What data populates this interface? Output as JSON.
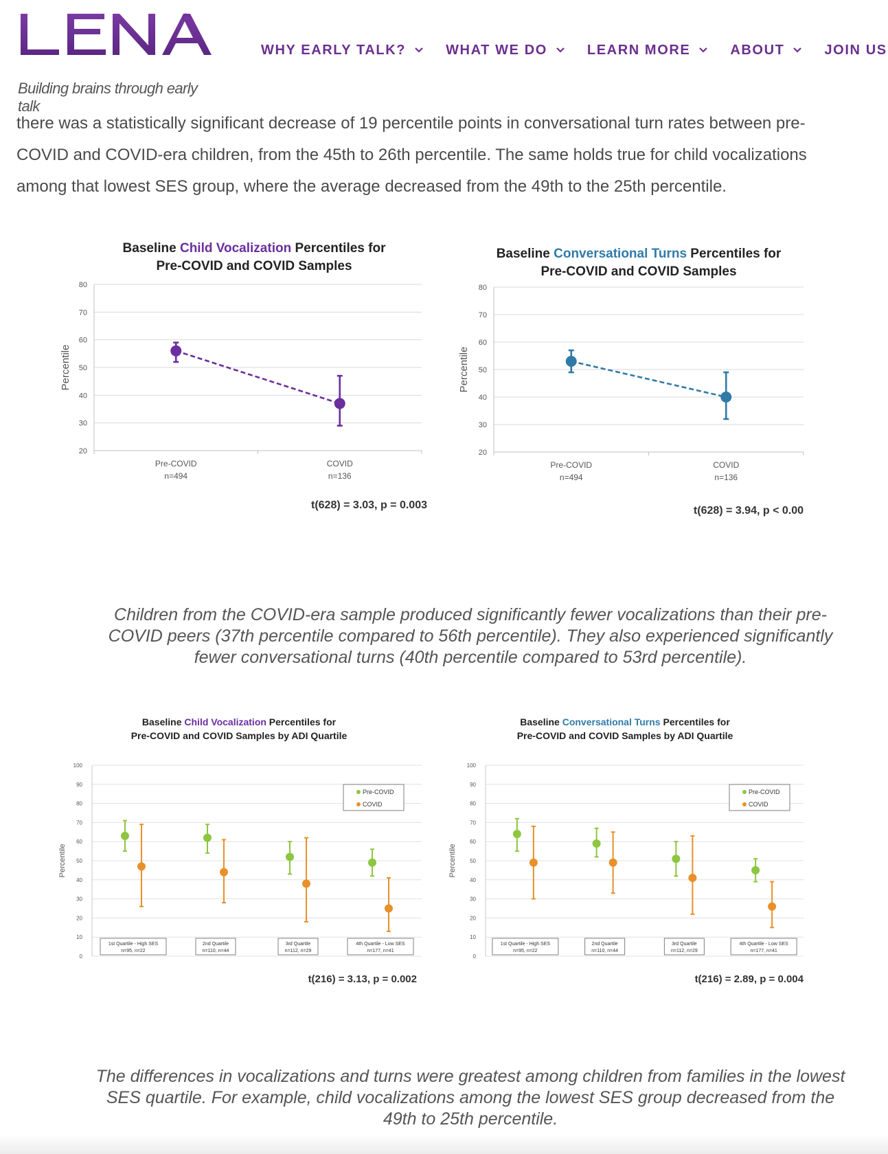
{
  "logo": {
    "wordmark": "LENA",
    "registered": "®",
    "tagline": "Building brains through early talk"
  },
  "nav": {
    "items": [
      {
        "label": "WHY EARLY TALK?",
        "icon": "chevron-down-icon"
      },
      {
        "label": "WHAT WE DO",
        "icon": "chevron-down-icon"
      },
      {
        "label": "LEARN MORE",
        "icon": "chevron-down-icon"
      },
      {
        "label": "ABOUT",
        "icon": "chevron-down-icon"
      },
      {
        "label": "JOIN US",
        "icon": "chevron-down-icon"
      }
    ]
  },
  "colors": {
    "brand": "#6b2f8f",
    "cv": "#6a2e9e",
    "ct": "#2f7aa8",
    "pre": "#8dc63f",
    "covid": "#e8902a"
  },
  "article": {
    "intro_lines": [
      "there was a statistically significant decrease of 19 percentile points in conversational turn rates between pre-",
      "COVID and COVID-era children, from the 45th to 26th percentile. The same holds true for child vocalizations",
      "among that lowest SES group, where the average decreased from the 49th to the 25th percentile."
    ],
    "caption1": "Children from the COVID-era sample produced significantly fewer vocalizations than their pre-COVID peers (37th percentile compared to 56th percentile). They also experienced significantly fewer conversational turns (40th percentile compared to 53rd percentile).",
    "caption2": "The differences in vocalizations and turns were greatest among children from families in the lowest SES quartile. For example, child vocalizations among the lowest SES group decreased from the 49th to 25th percentile."
  },
  "chart_data": [
    {
      "type": "line",
      "title_parts": [
        "Baseline ",
        "Child Vocalization",
        " Percentiles for"
      ],
      "title_line2": "Pre-COVID and COVID Samples",
      "ylabel": "Percentile",
      "ylim": [
        20,
        80
      ],
      "yticks": [
        20,
        30,
        40,
        50,
        60,
        70,
        80
      ],
      "categories": [
        "Pre-COVID",
        "COVID"
      ],
      "category_n": [
        "n=494",
        "n=136"
      ],
      "values": [
        56,
        37
      ],
      "err_low": [
        52,
        29
      ],
      "err_high": [
        59,
        47
      ],
      "stat": "t(628) = 3.03, p = 0.003",
      "color_key": "cv"
    },
    {
      "type": "line",
      "title_parts": [
        "Baseline ",
        "Conversational Turns",
        " Percentiles for"
      ],
      "title_line2": "Pre-COVID and COVID Samples",
      "ylabel": "Percentile",
      "ylim": [
        20,
        80
      ],
      "yticks": [
        20,
        30,
        40,
        50,
        60,
        70,
        80
      ],
      "categories": [
        "Pre-COVID",
        "COVID"
      ],
      "category_n": [
        "n=494",
        "n=136"
      ],
      "values": [
        53,
        40
      ],
      "err_low": [
        49,
        32
      ],
      "err_high": [
        57,
        49
      ],
      "stat": "t(628) = 3.94, p < 0.00",
      "color_key": "ct"
    },
    {
      "type": "scatter",
      "title_parts": [
        "Baseline ",
        "Child Vocalization",
        " Percentiles for"
      ],
      "title_line2": "Pre-COVID and COVID Samples by ADI Quartile",
      "ylabel": "Percentile",
      "ylim": [
        0,
        100
      ],
      "yticks": [
        0,
        10,
        20,
        30,
        40,
        50,
        60,
        70,
        80,
        90,
        100
      ],
      "categories": [
        "1st Quartile - High SES",
        "2nd Quartile",
        "3rd Quartile",
        "4th Quartile - Low SES"
      ],
      "category_n": [
        "n=95, n=22",
        "n=110, n=44",
        "n=112, n=29",
        "n=177, n=41"
      ],
      "legend": [
        "Pre-COVID",
        "COVID"
      ],
      "series": [
        {
          "name": "Pre-COVID",
          "values": [
            63,
            62,
            52,
            49
          ],
          "err_low": [
            55,
            54,
            43,
            42
          ],
          "err_high": [
            71,
            69,
            60,
            56
          ]
        },
        {
          "name": "COVID",
          "values": [
            47,
            44,
            38,
            25
          ],
          "err_low": [
            26,
            28,
            18,
            13
          ],
          "err_high": [
            69,
            61,
            62,
            41
          ]
        }
      ],
      "stat": "t(216) = 3.13, p = 0.002",
      "color_key": "cv"
    },
    {
      "type": "scatter",
      "title_parts": [
        "Baseline ",
        "Conversational Turns",
        " Percentiles for"
      ],
      "title_line2": "Pre-COVID and COVID Samples by ADI Quartile",
      "ylabel": "Percentile",
      "ylim": [
        0,
        100
      ],
      "yticks": [
        0,
        10,
        20,
        30,
        40,
        50,
        60,
        70,
        80,
        90,
        100
      ],
      "categories": [
        "1st Quartile - High SES",
        "2nd Quartile",
        "3rd Quartile",
        "4th Quartile - Low SES"
      ],
      "category_n": [
        "n=95, n=22",
        "n=110, n=44",
        "n=112, n=29",
        "n=177, n=41"
      ],
      "legend": [
        "Pre-COVID",
        "COVID"
      ],
      "series": [
        {
          "name": "Pre-COVID",
          "values": [
            64,
            59,
            51,
            45
          ],
          "err_low": [
            55,
            52,
            42,
            39
          ],
          "err_high": [
            72,
            67,
            60,
            51
          ]
        },
        {
          "name": "COVID",
          "values": [
            49,
            49,
            41,
            26
          ],
          "err_low": [
            30,
            33,
            22,
            15
          ],
          "err_high": [
            68,
            65,
            63,
            39
          ]
        }
      ],
      "stat": "t(216) = 2.89, p = 0.004",
      "color_key": "ct"
    }
  ]
}
